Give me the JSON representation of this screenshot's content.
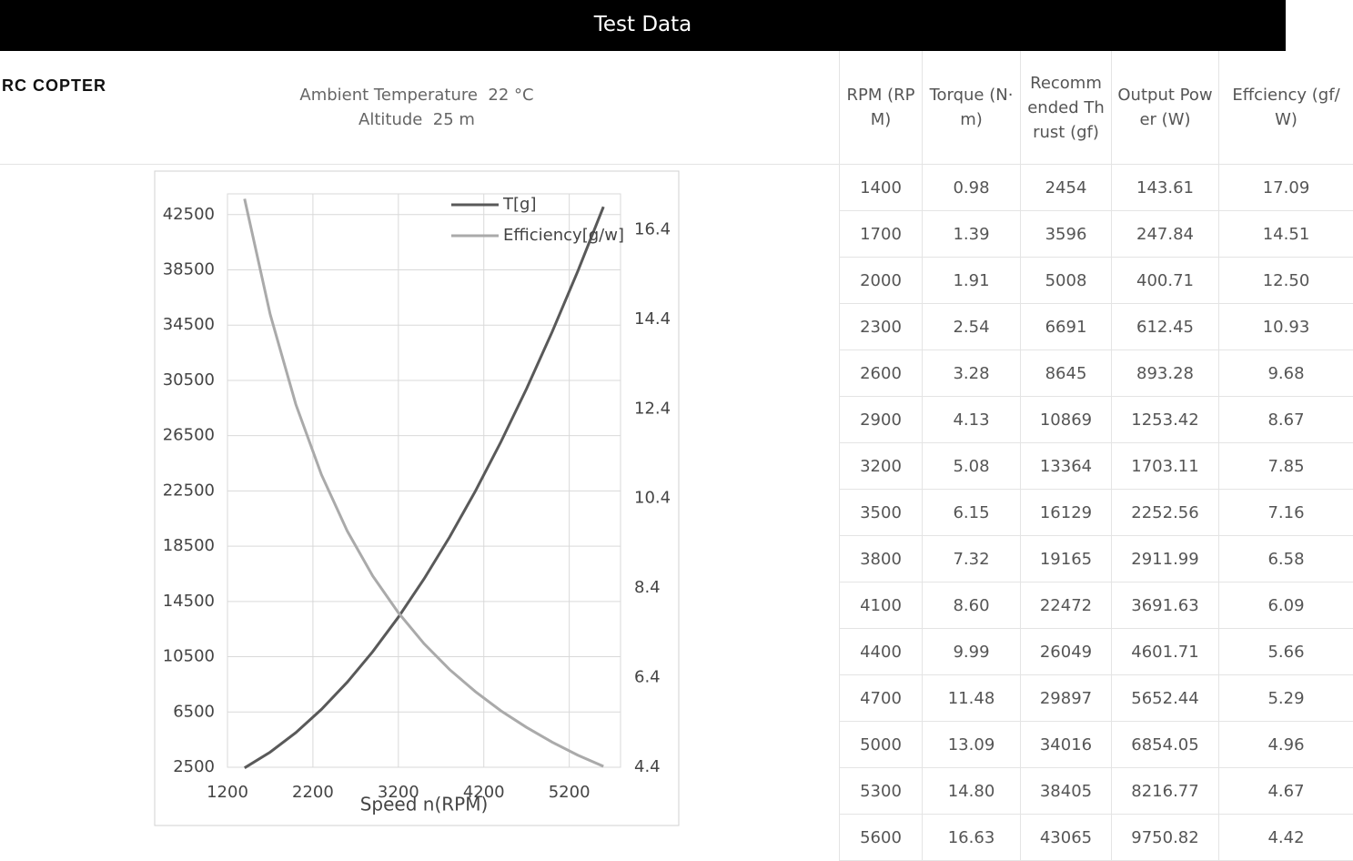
{
  "header": {
    "title": "Test Data"
  },
  "logo": "RC COPTER",
  "conditions": [
    "Ambient Temperature  22 °C",
    "Altitude  25 m"
  ],
  "chart_data": {
    "type": "line",
    "x_label": "Speed n(RPM)",
    "x": [
      1400,
      1700,
      2000,
      2300,
      2600,
      2900,
      3200,
      3500,
      3800,
      4100,
      4400,
      4700,
      5000,
      5300,
      5600
    ],
    "series": [
      {
        "name": "T[g]",
        "color": "#595959",
        "values": [
          2454,
          3596,
          5008,
          6691,
          8645,
          10869,
          13364,
          16129,
          19165,
          22472,
          26049,
          29897,
          34016,
          38405,
          43065
        ]
      },
      {
        "name": "Efficiency[g/w]",
        "color": "#aaaaaa",
        "axis": "y2",
        "values": [
          17.09,
          14.51,
          12.5,
          10.93,
          9.68,
          8.67,
          7.85,
          7.16,
          6.58,
          6.09,
          5.66,
          5.29,
          4.96,
          4.67,
          4.42
        ]
      }
    ],
    "xlim": [
      1200,
      5800
    ],
    "xticks": [
      1200,
      2200,
      3200,
      4200,
      5200
    ],
    "ylim": [
      2500,
      44000
    ],
    "yticks": [
      2500,
      6500,
      10500,
      14500,
      18500,
      22500,
      26500,
      30500,
      34500,
      38500,
      42500
    ],
    "y2lim": [
      4.4,
      17.2
    ],
    "y2ticks": [
      4.4,
      6.4,
      8.4,
      10.4,
      12.4,
      14.4,
      16.4
    ],
    "grid": true
  },
  "table": {
    "headers": [
      "RPM (RPM)",
      "Torque (N·m)",
      "Recommended Thrust (gf)",
      "Output Power (W)",
      "Effciency (gf/W)"
    ],
    "rows": [
      [
        "1400",
        "0.98",
        "2454",
        "143.61",
        "17.09"
      ],
      [
        "1700",
        "1.39",
        "3596",
        "247.84",
        "14.51"
      ],
      [
        "2000",
        "1.91",
        "5008",
        "400.71",
        "12.50"
      ],
      [
        "2300",
        "2.54",
        "6691",
        "612.45",
        "10.93"
      ],
      [
        "2600",
        "3.28",
        "8645",
        "893.28",
        "9.68"
      ],
      [
        "2900",
        "4.13",
        "10869",
        "1253.42",
        "8.67"
      ],
      [
        "3200",
        "5.08",
        "13364",
        "1703.11",
        "7.85"
      ],
      [
        "3500",
        "6.15",
        "16129",
        "2252.56",
        "7.16"
      ],
      [
        "3800",
        "7.32",
        "19165",
        "2911.99",
        "6.58"
      ],
      [
        "4100",
        "8.60",
        "22472",
        "3691.63",
        "6.09"
      ],
      [
        "4400",
        "9.99",
        "26049",
        "4601.71",
        "5.66"
      ],
      [
        "4700",
        "11.48",
        "29897",
        "5652.44",
        "5.29"
      ],
      [
        "5000",
        "13.09",
        "34016",
        "6854.05",
        "4.96"
      ],
      [
        "5300",
        "14.80",
        "38405",
        "8216.77",
        "4.67"
      ],
      [
        "5600",
        "16.63",
        "43065",
        "9750.82",
        "4.42"
      ]
    ]
  }
}
